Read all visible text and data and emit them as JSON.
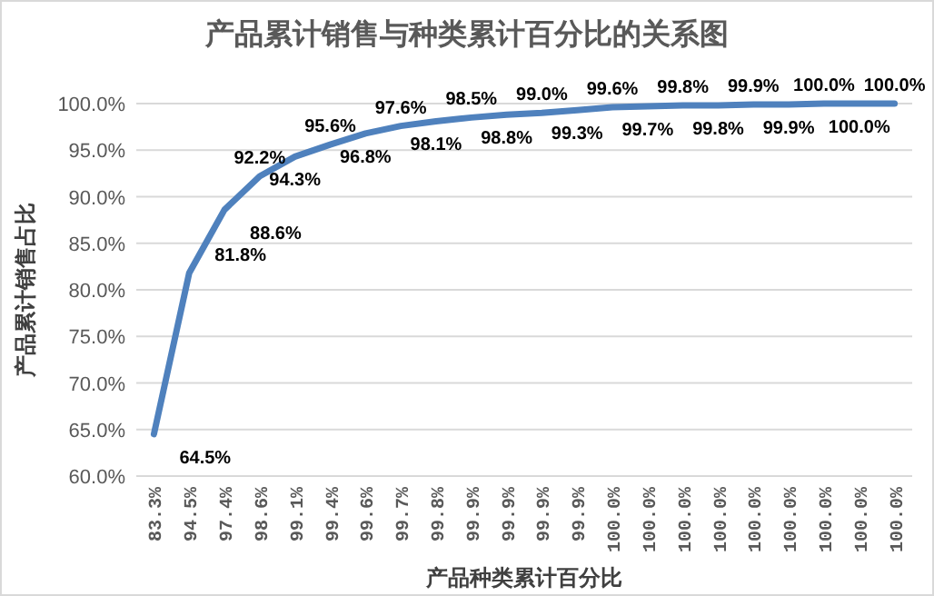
{
  "chart_data": {
    "type": "line",
    "title": "产品累计销售与种类累计百分比的关系图",
    "xlabel": "产品种类累计百分比",
    "ylabel": "产品累计销售占比",
    "categories": [
      "83.3%",
      "94.5%",
      "97.4%",
      "98.6%",
      "99.1%",
      "99.4%",
      "99.6%",
      "99.7%",
      "99.8%",
      "99.9%",
      "99.9%",
      "99.9%",
      "99.9%",
      "100.0%",
      "100.0%",
      "100.0%",
      "100.0%",
      "100.0%",
      "100.0%",
      "100.0%",
      "100.0%",
      "100.0%"
    ],
    "series": [
      {
        "color": "#4f81bd",
        "values": [
          64.5,
          81.8,
          88.6,
          92.2,
          94.3,
          95.6,
          96.8,
          97.6,
          98.1,
          98.5,
          98.8,
          99.0,
          99.3,
          99.6,
          99.7,
          99.8,
          99.8,
          99.9,
          99.9,
          100.0,
          100.0,
          100.0
        ],
        "value_labels": [
          "64.5%",
          "81.8%",
          "88.6%",
          "92.2%",
          "94.3%",
          "95.6%",
          "96.8%",
          "97.6%",
          "98.1%",
          "98.5%",
          "98.8%",
          "99.0%",
          "99.3%",
          "99.6%",
          "99.7%",
          "99.8%",
          "99.8%",
          "99.9%",
          "99.9%",
          "100.0%",
          "100.0%",
          "100.0%"
        ]
      }
    ],
    "ylim": [
      60,
      100
    ],
    "yticks": [
      {
        "value": 60,
        "label": "60.0%"
      },
      {
        "value": 65,
        "label": "65.0%"
      },
      {
        "value": 70,
        "label": "70.0%"
      },
      {
        "value": 75,
        "label": "75.0%"
      },
      {
        "value": 80,
        "label": "80.0%"
      },
      {
        "value": 85,
        "label": "85.0%"
      },
      {
        "value": 90,
        "label": "90.0%"
      },
      {
        "value": 95,
        "label": "95.0%"
      },
      {
        "value": 100,
        "label": "100.0%"
      }
    ],
    "grid": "y",
    "marker": "none",
    "line_style": "solid"
  }
}
